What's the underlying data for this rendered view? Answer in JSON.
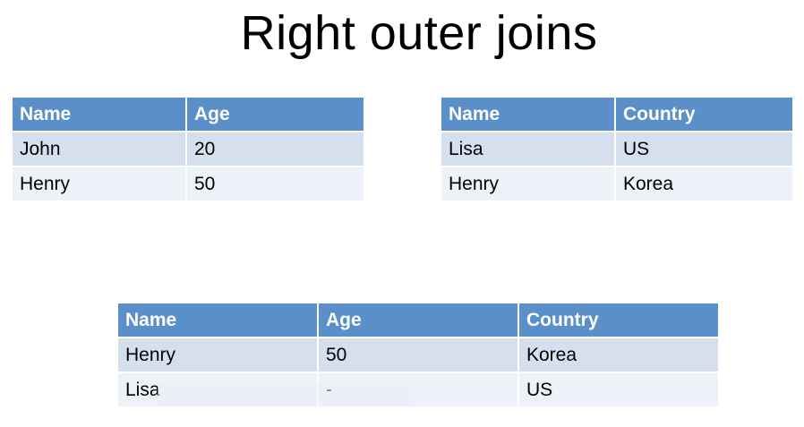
{
  "slide": {
    "title": "Right outer joins"
  },
  "left_table": {
    "headers": [
      "Name",
      "Age"
    ],
    "rows": [
      [
        "John",
        "20"
      ],
      [
        "Henry",
        "50"
      ]
    ]
  },
  "right_table": {
    "headers": [
      "Name",
      "Country"
    ],
    "rows": [
      [
        "Lisa",
        "US"
      ],
      [
        "Henry",
        "Korea"
      ]
    ]
  },
  "result_table": {
    "headers": [
      "Name",
      "Age",
      "Country"
    ],
    "rows": [
      [
        "Henry",
        "50",
        "Korea"
      ],
      [
        "Lisa",
        "-",
        "US"
      ]
    ]
  },
  "colors": {
    "header_fill": "#5b8fca",
    "band_1_fill": "#d6dfee",
    "band_2_fill": "#edf1f8"
  }
}
